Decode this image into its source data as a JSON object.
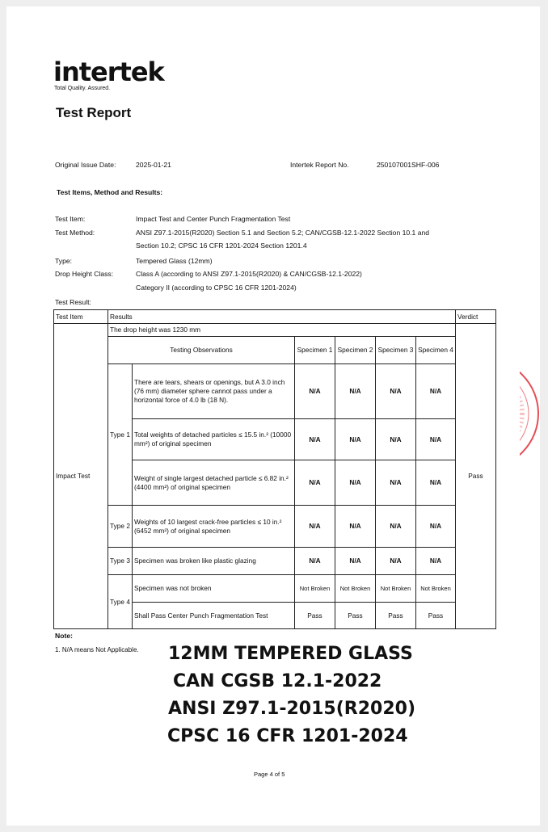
{
  "header": {
    "logo": "intertek",
    "tagline": "Total Quality. Assured.",
    "title": "Test Report"
  },
  "meta": {
    "issue_label": "Original Issue Date:",
    "issue_date": "2025-01-21",
    "report_label": "Intertek Report No.",
    "report_no": "250107001SHF-006"
  },
  "section_title": "Test Items, Method and Results:",
  "fields": [
    {
      "label": "Test Item:",
      "value": "Impact Test and Center Punch Fragmentation Test"
    },
    {
      "label": "Test Method:",
      "value": "ANSI Z97.1-2015(R2020) Section 5.1 and Section 5.2; CAN/CGSB-12.1-2022 Section 10.1 and",
      "value2": "Section 10.2; CPSC 16 CFR 1201-2024 Section 1201.4"
    },
    {
      "label": "Type:",
      "value": "Tempered Glass (12mm)"
    },
    {
      "label": "Drop Height Class:",
      "value": "Class A (according to ANSI Z97.1-2015(R2020) & CAN/CGSB-12.1-2022)",
      "value2": "Category II (according to CPSC 16 CFR 1201-2024)"
    }
  ],
  "result_label": "Test Result:",
  "table": {
    "h_item": "Test Item",
    "h_results": "Results",
    "h_verdict": "Verdict",
    "drop": "The drop height was  1230 mm",
    "obs": "Testing Observations",
    "spec": [
      "Specimen 1",
      "Specimen 2",
      "Specimen 3",
      "Specimen 4"
    ],
    "item": "Impact Test",
    "verdict": "Pass",
    "types": [
      "Type 1",
      "Type 2",
      "Type 3",
      "Type 4"
    ],
    "rows": [
      {
        "text": "There are tears, shears or openings, but A 3.0 inch (76 mm) diameter sphere cannot pass under a horizontal force of 4.0 lb (18 N).",
        "vals": [
          "N/A",
          "N/A",
          "N/A",
          "N/A"
        ]
      },
      {
        "text": "Total weights of detached particles ≤ 15.5 in.² (10000 mm²) of original specimen",
        "vals": [
          "N/A",
          "N/A",
          "N/A",
          "N/A"
        ]
      },
      {
        "text": "Weight of single largest detached particle ≤ 6.82 in.² (4400 mm²) of original specimen",
        "vals": [
          "N/A",
          "N/A",
          "N/A",
          "N/A"
        ]
      },
      {
        "text": "Weights of 10 largest crack-free particles ≤ 10 in.² (6452 mm²) of original specimen",
        "vals": [
          "N/A",
          "N/A",
          "N/A",
          "N/A"
        ]
      },
      {
        "text": "Specimen was broken like plastic glazing",
        "vals": [
          "N/A",
          "N/A",
          "N/A",
          "N/A"
        ]
      },
      {
        "text": "Specimen was not broken",
        "vals": [
          "Not Broken",
          "Not Broken",
          "Not Broken",
          "Not Broken"
        ]
      },
      {
        "text": "Shall Pass Center Punch Fragmentation Test",
        "vals": [
          "Pass",
          "Pass",
          "Pass",
          "Pass"
        ]
      }
    ]
  },
  "note_label": "Note:",
  "note1": "1. N/A means Not Applicable.",
  "overlay": [
    "12MM TEMPERED GLASS",
    "CAN CGSB 12.1-2022",
    "ANSI Z97.1-2015(R2020)",
    "CPSC 16 CFR 1201-2024"
  ],
  "footer": "Page 4 of 5",
  "stamp_color": "#e0202a"
}
